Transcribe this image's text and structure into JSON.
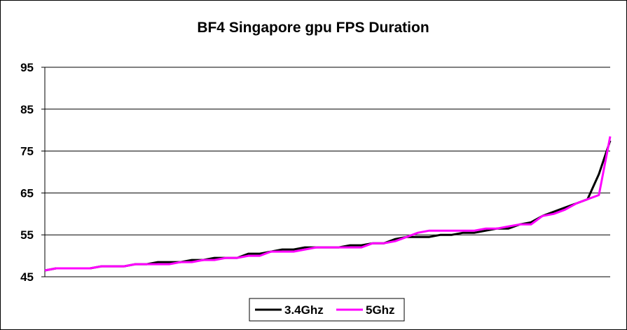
{
  "chart_data": {
    "type": "line",
    "title": "BF4 Singapore gpu FPS Duration",
    "xlabel": "",
    "ylabel": "",
    "ylim": [
      45,
      95
    ],
    "yticks": [
      45,
      55,
      65,
      75,
      85,
      95
    ],
    "grid": true,
    "legend_position": "bottom",
    "series": [
      {
        "name": "3.4Ghz",
        "color": "#000000",
        "x": [
          0,
          2,
          5,
          8,
          10,
          12,
          14,
          16,
          18,
          20,
          22,
          24,
          26,
          28,
          30,
          32,
          34,
          36,
          38,
          40,
          42,
          44,
          46,
          48,
          50,
          52,
          54,
          56,
          58,
          60,
          62,
          64,
          66,
          68,
          70,
          72,
          74,
          76,
          78,
          80,
          82,
          84,
          86,
          88,
          90,
          92,
          94,
          96,
          98,
          100
        ],
        "y": [
          46.5,
          47,
          47,
          47,
          47.5,
          47.5,
          47.5,
          48,
          48,
          48.5,
          48.5,
          48.5,
          49,
          49,
          49.5,
          49.5,
          49.5,
          50.5,
          50.5,
          51,
          51.5,
          51.5,
          52,
          52,
          52,
          52,
          52.5,
          52.5,
          53,
          53,
          54,
          54.5,
          54.5,
          54.5,
          55,
          55,
          55.5,
          55.5,
          56,
          56.5,
          56.5,
          57.5,
          58,
          59.5,
          60.5,
          61.5,
          62.5,
          63.5,
          69.5,
          77.5
        ]
      },
      {
        "name": "5Ghz",
        "color": "#ff00ff",
        "x": [
          0,
          2,
          5,
          8,
          10,
          12,
          14,
          16,
          18,
          20,
          22,
          24,
          26,
          28,
          30,
          32,
          34,
          36,
          38,
          40,
          42,
          44,
          46,
          48,
          50,
          52,
          54,
          56,
          58,
          60,
          62,
          64,
          66,
          68,
          70,
          72,
          74,
          76,
          78,
          80,
          82,
          84,
          86,
          88,
          90,
          92,
          94,
          96,
          98,
          100
        ],
        "y": [
          46.5,
          47,
          47,
          47,
          47.5,
          47.5,
          47.5,
          48,
          48,
          48,
          48,
          48.5,
          48.5,
          49,
          49,
          49.5,
          49.5,
          50,
          50,
          51,
          51,
          51,
          51.5,
          52,
          52,
          52,
          52,
          52,
          53,
          53,
          53.5,
          54.5,
          55.5,
          56,
          56,
          56,
          56,
          56,
          56.5,
          56.5,
          57,
          57.5,
          57.5,
          59.5,
          60,
          61,
          62.5,
          63.5,
          64.5,
          78.5
        ]
      }
    ]
  }
}
